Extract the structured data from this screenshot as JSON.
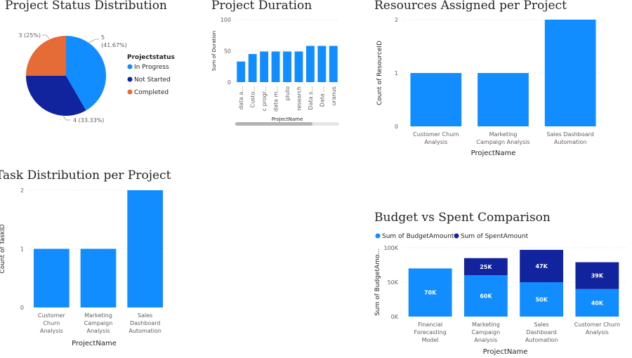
{
  "colors": {
    "in_progress": "#118dff",
    "not_started": "#12239e",
    "completed": "#e66c37",
    "bar": "#118dff",
    "spent": "#12239e",
    "grid": "#d6d6d6",
    "text": "#605e5c"
  },
  "chart_data": [
    {
      "id": "pie",
      "type": "pie",
      "title": "Project Status Distribution",
      "legend_title": "Projectstatus",
      "legend_position": "right",
      "slices": [
        {
          "name": "In Progress",
          "value": 5,
          "label_top": "5",
          "label_bottom": "(41.67%)"
        },
        {
          "name": "Not Started",
          "value": 4,
          "label": "4 (33.33%)"
        },
        {
          "name": "Completed",
          "value": 3,
          "label": "3 (25%)"
        }
      ]
    },
    {
      "id": "duration",
      "type": "bar",
      "title": "Project Duration",
      "xlabel": "ProjectName",
      "ylabel": "Sum of Duration",
      "ylim": [
        0,
        100
      ],
      "yticks": [
        0,
        50,
        100
      ],
      "categories": [
        "data a...",
        "Custo...",
        "c progr...",
        "data m...",
        "pluto",
        "research",
        "Data s...",
        "Data ...",
        "uranus"
      ],
      "values": [
        33,
        45,
        49,
        49,
        49,
        49,
        58,
        58,
        58
      ]
    },
    {
      "id": "resources",
      "type": "bar",
      "title": "Resources Assigned per Project",
      "xlabel": "ProjectName",
      "ylabel": "Count of ResourceID",
      "ylim": [
        0,
        2
      ],
      "yticks": [
        0,
        1,
        2
      ],
      "categories": [
        [
          "Customer Churn",
          "Analysis"
        ],
        [
          "Marketing",
          "Campaign Analysis"
        ],
        [
          "Sales Dashboard",
          "Automation"
        ]
      ],
      "values": [
        1,
        1,
        2
      ]
    },
    {
      "id": "tasks",
      "type": "bar",
      "title": "Task Distribution per Project",
      "xlabel": "ProjectName",
      "ylabel": "Count of TaskID",
      "ylim": [
        0,
        2
      ],
      "yticks": [
        0,
        1,
        2
      ],
      "categories": [
        [
          "Customer",
          "Churn",
          "Analysis"
        ],
        [
          "Marketing",
          "Campaign",
          "Analysis"
        ],
        [
          "Sales",
          "Dashboard",
          "Automation"
        ]
      ],
      "values": [
        1,
        1,
        2
      ]
    },
    {
      "id": "budget",
      "type": "bar",
      "stacked": true,
      "title": "Budget vs Spent Comparison",
      "xlabel": "ProjectName",
      "ylabel": "Sum of BudgetAmo...",
      "ylim": [
        0,
        100000
      ],
      "yticks": [
        0,
        50000,
        100000
      ],
      "ytick_labels": [
        "0K",
        "50K",
        "100K"
      ],
      "legend_position": "top-left",
      "categories": [
        [
          "Financial",
          "Forecasting",
          "Model"
        ],
        [
          "Marketing",
          "Campaign",
          "Analysis"
        ],
        [
          "Sales",
          "Dashboard",
          "Automation"
        ],
        [
          "Customer Churn",
          "Analysis"
        ]
      ],
      "series": [
        {
          "name": "Sum of BudgetAmount",
          "values": [
            70000,
            60000,
            50000,
            40000
          ],
          "labels": [
            "70K",
            "60K",
            "50K",
            "40K"
          ]
        },
        {
          "name": "Sum of SpentAmount",
          "values": [
            0,
            25000,
            47000,
            39000
          ],
          "labels": [
            "",
            "25K",
            "47K",
            "39K"
          ]
        }
      ]
    }
  ]
}
